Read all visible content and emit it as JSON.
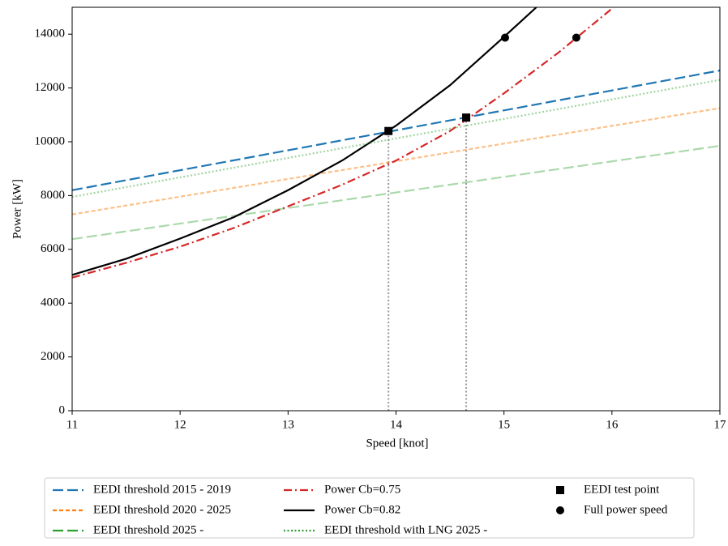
{
  "chart_data": {
    "type": "line",
    "xlabel": "Speed [knot]",
    "ylabel": "Power [kW]",
    "xlim": [
      11,
      17
    ],
    "ylim": [
      0,
      15000
    ],
    "xticks": [
      11,
      12,
      13,
      14,
      15,
      16,
      17
    ],
    "yticks": [
      0,
      2000,
      4000,
      6000,
      8000,
      10000,
      12000,
      14000
    ],
    "legend": "bottom",
    "series": [
      {
        "name": "EEDI threshold 2015 - 2019",
        "color": "#1f77b4",
        "alpha": 1,
        "style": "dashed",
        "x": [
          11,
          17
        ],
        "values": [
          8200,
          12650
        ]
      },
      {
        "name": "EEDI threshold 2020 - 2025",
        "color": "#ff7f0e",
        "alpha": 0.5,
        "style": "short-dashed",
        "x": [
          11,
          17
        ],
        "values": [
          7300,
          11250
        ]
      },
      {
        "name": "EEDI threshold 2025 -",
        "color": "#2ca02c",
        "alpha": 0.4,
        "style": "dashed",
        "x": [
          11,
          17
        ],
        "values": [
          6380,
          9850
        ]
      },
      {
        "name": "Power Cb=0.75",
        "color": "#d62728",
        "alpha": 1,
        "style": "dashdot",
        "x": [
          11,
          11.5,
          12,
          12.5,
          13,
          13.5,
          14,
          14.5,
          15,
          15.5,
          16
        ],
        "values": [
          4950,
          5500,
          6100,
          6800,
          7600,
          8400,
          9300,
          10400,
          11800,
          13300,
          14950
        ]
      },
      {
        "name": "Power Cb=0.82",
        "color": "#000000",
        "alpha": 1,
        "style": "solid",
        "x": [
          11,
          11.5,
          12,
          12.5,
          13,
          13.5,
          14,
          14.5,
          15,
          15.3
        ],
        "values": [
          5050,
          5650,
          6400,
          7200,
          8200,
          9300,
          10600,
          12100,
          13900,
          15000
        ]
      },
      {
        "name": "EEDI threshold with LNG 2025 -",
        "color": "#2ca02c",
        "alpha": 0.45,
        "style": "dotted",
        "x": [
          11,
          17
        ],
        "values": [
          7950,
          12300
        ]
      },
      {
        "name": "EEDI test point",
        "color": "#000000",
        "alpha": 1,
        "style": "none",
        "marker": "square",
        "x": [
          13.93,
          14.65
        ],
        "values": [
          10400,
          10900
        ]
      },
      {
        "name": "Full power speed",
        "color": "#000000",
        "alpha": 1,
        "style": "none",
        "marker": "circle",
        "x": [
          15.01,
          15.67
        ],
        "values": [
          13870,
          13870
        ]
      }
    ],
    "guides": {
      "color": "#999999",
      "x": [
        13.93,
        14.65
      ],
      "values": [
        10400,
        10900
      ]
    }
  }
}
